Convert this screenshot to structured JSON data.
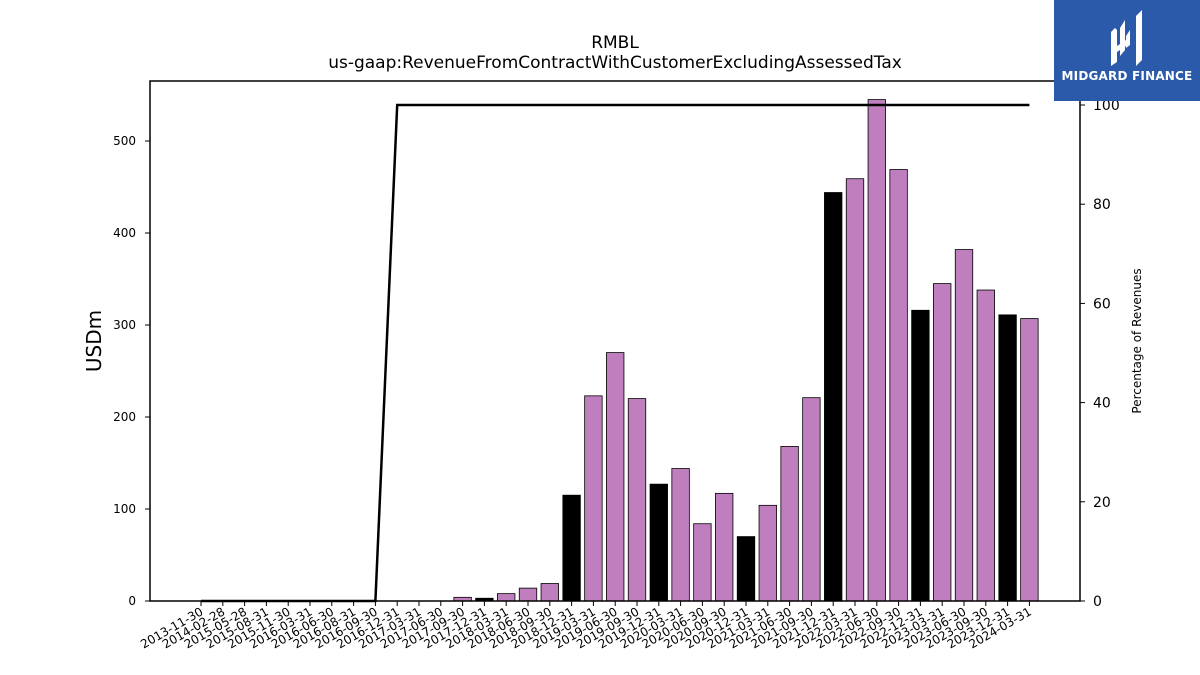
{
  "chart_data": {
    "type": "bar",
    "title": "RMBL",
    "subtitle": "us-gaap:RevenueFromContractWithCustomerExcludingAssessedTax",
    "ylabel": "USDm",
    "y2label": "Percentage of Revenues",
    "ylim": [
      0,
      565
    ],
    "y2lim": [
      0,
      100
    ],
    "yticks": [
      0,
      100,
      200,
      300,
      400,
      500
    ],
    "y2ticks": [
      0,
      20,
      40,
      60,
      80,
      100
    ],
    "categories": [
      "2013-11-30",
      "2014-02-28",
      "2015-05-28",
      "2015-08-31",
      "2015-11-30",
      "2016-03-31",
      "2016-06-30",
      "2016-08-31",
      "2016-09-30",
      "2016-12-31",
      "2017-03-31",
      "2017-06-30",
      "2017-09-30",
      "2017-12-31",
      "2018-03-31",
      "2018-06-30",
      "2018-09-30",
      "2018-12-31",
      "2019-03-31",
      "2019-06-30",
      "2019-09-30",
      "2019-12-31",
      "2020-03-31",
      "2020-06-30",
      "2020-09-30",
      "2020-12-31",
      "2021-03-31",
      "2021-06-30",
      "2021-09-30",
      "2021-12-31",
      "2022-03-31",
      "2022-06-30",
      "2022-09-30",
      "2022-12-31",
      "2023-03-31",
      "2023-06-30",
      "2023-09-30",
      "2023-12-31",
      "2024-03-31"
    ],
    "values": [
      0,
      0,
      0,
      0,
      0,
      0,
      0,
      0,
      0,
      0,
      0,
      0,
      4,
      3,
      8,
      14,
      19,
      115,
      223,
      270,
      220,
      127,
      144,
      84,
      117,
      70,
      104,
      168,
      221,
      444,
      459,
      545,
      469,
      316,
      345,
      382,
      338,
      311,
      307
    ],
    "annual": [
      false,
      false,
      false,
      false,
      false,
      false,
      false,
      false,
      false,
      false,
      false,
      false,
      false,
      true,
      false,
      false,
      false,
      true,
      false,
      false,
      false,
      true,
      false,
      false,
      false,
      true,
      false,
      false,
      false,
      true,
      false,
      false,
      false,
      true,
      false,
      false,
      false,
      true,
      false
    ],
    "pct_line": [
      0,
      0,
      0,
      0,
      0,
      0,
      0,
      0,
      0,
      100,
      100,
      100,
      100,
      100,
      100,
      100,
      100,
      100,
      100,
      100,
      100,
      100,
      100,
      100,
      100,
      100,
      100,
      100,
      100,
      100,
      100,
      100,
      100,
      100,
      100,
      100,
      100,
      100,
      100
    ],
    "colors": {
      "quarter": "#bf7fbf",
      "annual": "#000000",
      "line": "#000000"
    }
  },
  "logo": {
    "text": "MIDGARD FINANCE"
  }
}
